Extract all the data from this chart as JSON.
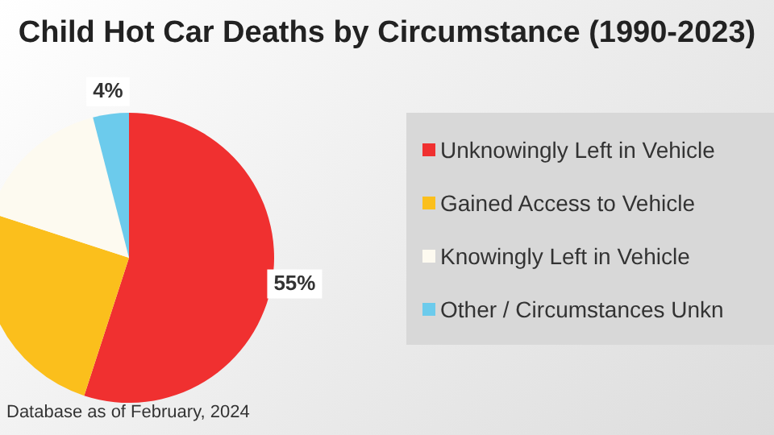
{
  "chart_data": {
    "type": "pie",
    "title": "Child Hot Car Deaths by Circumstance (1990-2023)",
    "categories": [
      "Unknowingly Left in Vehicle",
      "Gained Access to Vehicle",
      "Knowingly Left in Vehicle",
      "Other / Circumstances Unkn"
    ],
    "values": [
      55,
      25,
      16,
      4
    ],
    "colors": [
      "#f03030",
      "#fbbf1c",
      "#fdfaf0",
      "#6ccbec"
    ],
    "value_labels": [
      "55%",
      null,
      null,
      "4%"
    ],
    "legend": "right",
    "annotations": [
      "Database as of February, 2024"
    ]
  }
}
